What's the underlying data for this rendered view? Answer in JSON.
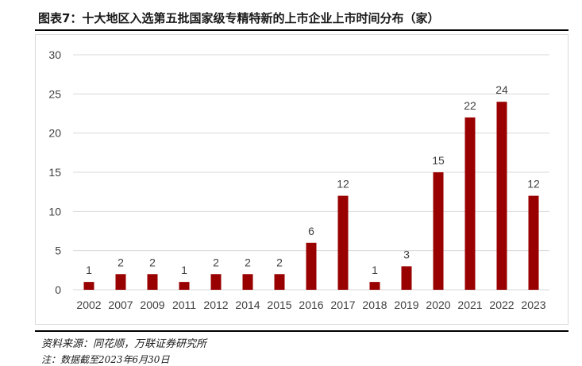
{
  "header": {
    "title": "图表7：十大地区入选第五批国家级专精特新的上市企业上市时间分布（家）"
  },
  "footer": {
    "source": "资料来源：同花顺，万联证券研究所",
    "note": "注：数据截至2023年6月30日"
  },
  "chart_data": {
    "type": "bar",
    "title": "",
    "xlabel": "",
    "ylabel": "",
    "categories": [
      "2002",
      "2007",
      "2009",
      "2011",
      "2012",
      "2014",
      "2015",
      "2016",
      "2017",
      "2018",
      "2019",
      "2020",
      "2021",
      "2022",
      "2023"
    ],
    "values": [
      1,
      2,
      2,
      1,
      2,
      2,
      2,
      6,
      12,
      1,
      3,
      15,
      22,
      24,
      12
    ],
    "ylim": [
      0,
      30
    ],
    "yticks": [
      0,
      5,
      10,
      15,
      20,
      25,
      30
    ],
    "grid": true,
    "legend": "none",
    "bar_color": "#990000",
    "grid_color": "#d9d9d9",
    "data_labels": true
  }
}
